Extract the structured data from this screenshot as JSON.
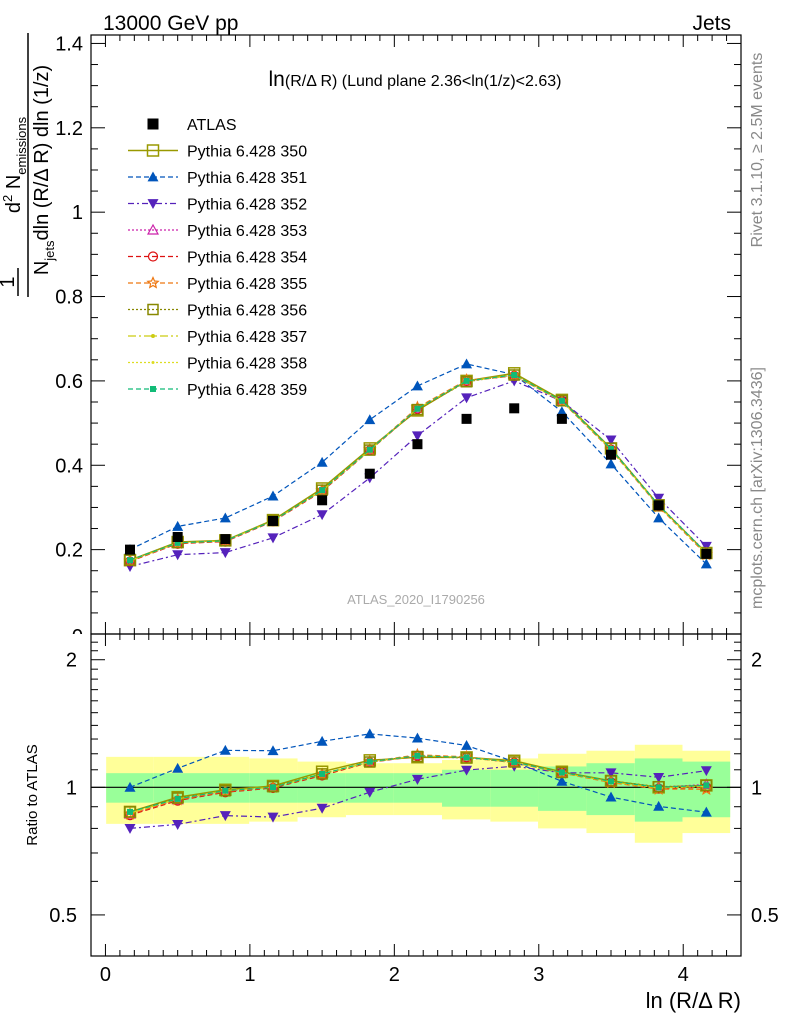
{
  "header": {
    "left": "13000 GeV pp",
    "right": "Jets"
  },
  "side_labels": {
    "rivet": "Rivet 3.1.10, ≥ 2.5M events",
    "mcplots": "mcplots.cern.ch [arXiv:1306.3436]"
  },
  "watermark": "ATLAS_2020_I1790256",
  "plot_title": "ln(R/Δ R) (Lund plane 2.36<ln(1/z)<2.63)",
  "ratio_ylabel": "Ratio to ATLAS",
  "xlabel": "ln (R/Δ R)",
  "colors": {
    "atlas": "#000000",
    "band_inner": "#99ff99",
    "band_outer": "#ffff99",
    "s350": "#999900",
    "s351": "#0055bb",
    "s352": "#5522bb",
    "s353": "#cc22aa",
    "s354": "#dd1111",
    "s355": "#ee7711",
    "s356": "#888800",
    "s357": "#cccc11",
    "s358": "#dddd22",
    "s359": "#11bb77"
  },
  "chart_data": {
    "type": "line",
    "x": [
      0.17,
      0.5,
      0.83,
      1.16,
      1.5,
      1.83,
      2.16,
      2.5,
      2.83,
      3.16,
      3.5,
      3.83,
      4.16
    ],
    "xlim": [
      -0.1,
      4.4
    ],
    "main_ylim": [
      0,
      1.42
    ],
    "ratio_ylim": [
      0.4,
      2.3
    ],
    "ratio_log": true,
    "x_ticks": [
      0,
      1,
      2,
      3,
      4
    ],
    "main_y_ticks": [
      0.2,
      0.4,
      0.6,
      0.8,
      1,
      1.2,
      1.4
    ],
    "ratio_y_ticks": [
      0.5,
      1,
      2
    ],
    "main_tick_labels": [
      "0.2",
      "0.4",
      "0.6",
      "0.8",
      "1",
      "1.2",
      "1.4"
    ],
    "ratio_tick_labels": [
      "0.5",
      "1",
      "2"
    ],
    "x_tick_labels": [
      "0",
      "1",
      "2",
      "3",
      "4"
    ],
    "legend_position": "top-left",
    "data_series": {
      "name": "ATLAS",
      "values": [
        0.2,
        0.23,
        0.225,
        0.268,
        0.317,
        0.38,
        0.45,
        0.51,
        0.535,
        0.51,
        0.425,
        0.305,
        0.19
      ]
    },
    "band_inner": [
      0.08,
      0.08,
      0.08,
      0.08,
      0.08,
      0.08,
      0.08,
      0.1,
      0.1,
      0.12,
      0.14,
      0.17,
      0.15
    ],
    "band_outer": [
      0.18,
      0.18,
      0.18,
      0.17,
      0.15,
      0.14,
      0.14,
      0.16,
      0.17,
      0.2,
      0.22,
      0.26,
      0.22
    ],
    "series": [
      {
        "name": "Pythia 6.428 350",
        "values": [
          0.175,
          0.218,
          0.222,
          0.27,
          0.345,
          0.44,
          0.53,
          0.6,
          0.618,
          0.555,
          0.44,
          0.305,
          0.192
        ]
      },
      {
        "name": "Pythia 6.428 351",
        "values": [
          0.2,
          0.255,
          0.275,
          0.327,
          0.407,
          0.508,
          0.588,
          0.64,
          0.615,
          0.527,
          0.403,
          0.275,
          0.166
        ]
      },
      {
        "name": "Pythia 6.428 352",
        "values": [
          0.16,
          0.188,
          0.193,
          0.228,
          0.283,
          0.37,
          0.47,
          0.56,
          0.6,
          0.552,
          0.46,
          0.322,
          0.208
        ]
      },
      {
        "name": "Pythia 6.428 353",
        "values": [
          0.173,
          0.215,
          0.22,
          0.268,
          0.34,
          0.436,
          0.535,
          0.6,
          0.612,
          0.552,
          0.438,
          0.305,
          0.193
        ]
      },
      {
        "name": "Pythia 6.428 354",
        "values": [
          0.172,
          0.214,
          0.219,
          0.267,
          0.338,
          0.435,
          0.533,
          0.6,
          0.612,
          0.552,
          0.437,
          0.303,
          0.19
        ]
      },
      {
        "name": "Pythia 6.428 355",
        "values": [
          0.173,
          0.215,
          0.22,
          0.268,
          0.34,
          0.437,
          0.537,
          0.602,
          0.613,
          0.551,
          0.436,
          0.302,
          0.188
        ]
      },
      {
        "name": "Pythia 6.428 356",
        "values": [
          0.175,
          0.217,
          0.221,
          0.269,
          0.341,
          0.436,
          0.532,
          0.598,
          0.614,
          0.553,
          0.44,
          0.306,
          0.192
        ]
      },
      {
        "name": "Pythia 6.428 357",
        "values": [
          0.174,
          0.216,
          0.221,
          0.268,
          0.34,
          0.436,
          0.534,
          0.6,
          0.613,
          0.552,
          0.438,
          0.304,
          0.191
        ]
      },
      {
        "name": "Pythia 6.428 358",
        "values": [
          0.174,
          0.216,
          0.221,
          0.268,
          0.34,
          0.436,
          0.534,
          0.6,
          0.613,
          0.552,
          0.438,
          0.304,
          0.191
        ]
      },
      {
        "name": "Pythia 6.428 359",
        "values": [
          0.175,
          0.216,
          0.221,
          0.268,
          0.341,
          0.437,
          0.534,
          0.6,
          0.614,
          0.553,
          0.439,
          0.305,
          0.192
        ]
      }
    ]
  }
}
